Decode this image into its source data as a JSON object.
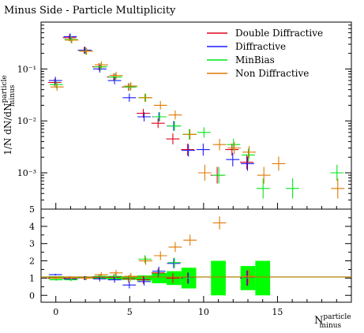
{
  "chart_data": {
    "title": "Minus Side - Particle Multiplicity",
    "xlabel_main": "N",
    "xlabel_sup": "particle",
    "xlabel_sub": "minus",
    "ylabel_main": {
      "prefix": "1/N dN/dN",
      "sup": "particle",
      "sub": "minus"
    },
    "xlim": [
      -1,
      20
    ],
    "top_panel": {
      "type": "scatter",
      "yscale": "log",
      "ylim": [
        0.0002,
        0.8
      ],
      "y_tick_labels": [
        "10⁻¹",
        "10⁻²",
        "10⁻³"
      ],
      "legend_placement": "top-right"
    },
    "ratio_panel": {
      "type": "scatter",
      "ylim": [
        -0.4,
        5
      ],
      "y_tick_labels": [
        "0",
        "1",
        "2",
        "3",
        "4",
        "5"
      ],
      "reference_line": 1
    },
    "x_tick_labels": [
      "0",
      "5",
      "10",
      "15"
    ],
    "series": [
      {
        "name": "Double Diffractive",
        "color": "#e0001b",
        "points": [
          [
            0,
            0.055
          ],
          [
            1,
            0.4
          ],
          [
            2,
            0.23
          ],
          [
            3,
            0.11
          ],
          [
            4,
            0.07
          ],
          [
            5,
            0.045
          ],
          [
            6,
            0.014
          ],
          [
            7,
            0.009
          ],
          [
            8,
            0.0045
          ],
          [
            9,
            0.0028
          ],
          [
            11,
            0.0009
          ],
          [
            12,
            0.0028
          ],
          [
            13,
            0.0016
          ]
        ],
        "ratio": [
          [
            0,
            1.0
          ],
          [
            1,
            1.0
          ],
          [
            2,
            1.0
          ],
          [
            3,
            1.05
          ],
          [
            4,
            1.05
          ],
          [
            5,
            0.95
          ],
          [
            6,
            0.9
          ],
          [
            7,
            1.3
          ],
          [
            8,
            1.0
          ],
          [
            9,
            1.0
          ],
          [
            13,
            1.0
          ]
        ]
      },
      {
        "name": "Diffractive",
        "color": "#1b1bff",
        "points": [
          [
            0,
            0.06
          ],
          [
            1,
            0.42
          ],
          [
            2,
            0.23
          ],
          [
            3,
            0.1
          ],
          [
            4,
            0.06
          ],
          [
            5,
            0.028
          ],
          [
            6,
            0.012
          ],
          [
            7,
            0.012
          ],
          [
            8,
            0.008
          ],
          [
            9,
            0.0027
          ],
          [
            10,
            0.0028
          ],
          [
            12,
            0.0018
          ],
          [
            13,
            0.0015
          ]
        ],
        "ratio": [
          [
            0,
            1.2
          ],
          [
            1,
            0.95
          ],
          [
            2,
            1.0
          ],
          [
            3,
            0.95
          ],
          [
            4,
            0.9
          ],
          [
            5,
            0.6
          ],
          [
            6,
            0.8
          ],
          [
            7,
            1.4
          ],
          [
            8,
            1.85
          ],
          [
            9,
            1.0
          ],
          [
            13,
            1.0
          ]
        ]
      },
      {
        "name": "MinBias",
        "color": "#00e619",
        "points": [
          [
            0,
            0.05
          ],
          [
            1,
            0.37
          ],
          [
            2,
            0.22
          ],
          [
            3,
            0.11
          ],
          [
            4,
            0.07
          ],
          [
            5,
            0.045
          ],
          [
            6,
            0.028
          ],
          [
            7,
            0.012
          ],
          [
            8,
            0.008
          ],
          [
            9,
            0.0055
          ],
          [
            10,
            0.006
          ],
          [
            11,
            0.0009
          ],
          [
            12,
            0.0035
          ],
          [
            13,
            0.0022
          ],
          [
            14,
            0.0005
          ],
          [
            16,
            0.0005
          ],
          [
            19,
            0.001
          ]
        ],
        "ratio": [
          [
            0,
            0.9
          ],
          [
            1,
            0.9
          ],
          [
            2,
            1.0
          ],
          [
            3,
            1.1
          ],
          [
            4,
            1.1
          ],
          [
            5,
            1.0
          ],
          [
            6,
            2.1
          ],
          [
            7,
            1.2
          ],
          [
            8,
            1.9
          ],
          [
            9,
            1.0
          ],
          [
            13,
            1.0
          ]
        ]
      },
      {
        "name": "Non Diffractive",
        "color": "#e07800",
        "points": [
          [
            0,
            0.045
          ],
          [
            1,
            0.36
          ],
          [
            2,
            0.22
          ],
          [
            3,
            0.12
          ],
          [
            4,
            0.075
          ],
          [
            5,
            0.047
          ],
          [
            6,
            0.028
          ],
          [
            7,
            0.02
          ],
          [
            8,
            0.013
          ],
          [
            9,
            0.0055
          ],
          [
            10,
            0.001
          ],
          [
            11,
            0.0035
          ],
          [
            12,
            0.003
          ],
          [
            13,
            0.0025
          ],
          [
            14,
            0.0009
          ],
          [
            15,
            0.0015
          ],
          [
            19,
            0.0005
          ]
        ],
        "ratio": [
          [
            0,
            1.0
          ],
          [
            1,
            1.0
          ],
          [
            2,
            1.0
          ],
          [
            3,
            1.2
          ],
          [
            4,
            1.3
          ],
          [
            5,
            1.1
          ],
          [
            6,
            2.0
          ],
          [
            7,
            2.3
          ],
          [
            8,
            2.8
          ],
          [
            9,
            3.2
          ],
          [
            11,
            4.2
          ],
          [
            13,
            1.1
          ]
        ]
      }
    ],
    "band": {
      "color": "#00ff00",
      "points": [
        [
          0,
          0.95,
          1.1
        ],
        [
          1,
          0.95,
          1.05
        ],
        [
          2,
          0.98,
          1.03
        ],
        [
          3,
          0.95,
          1.1
        ],
        [
          4,
          0.9,
          1.1
        ],
        [
          5,
          0.9,
          1.1
        ],
        [
          6,
          0.85,
          1.15
        ],
        [
          7,
          0.7,
          1.3
        ],
        [
          8,
          0.6,
          1.4
        ],
        [
          9,
          0.4,
          1.6
        ],
        [
          11,
          0.0,
          2.0
        ],
        [
          13,
          0.3,
          1.7
        ],
        [
          14,
          0.0,
          2.0
        ]
      ]
    }
  }
}
